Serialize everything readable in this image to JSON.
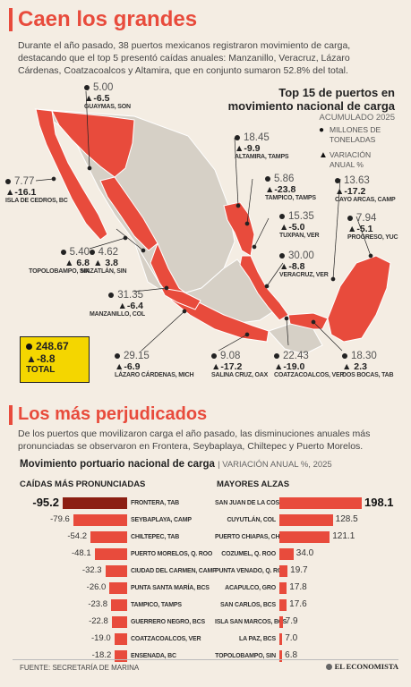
{
  "header": {
    "title": "Caen los grandes"
  },
  "intro": "Durante el año pasado, 38 puertos mexicanos registraron movimiento de carga, destacando que el top 5 presentó caídas anuales: Manzanillo, Veracruz, Lázaro Cárdenas, Coatzacoalcos y Altamira, que en conjunto sumaron 52.8% del total.",
  "map": {
    "title_line1": "Top 15 de puertos en",
    "title_line2": "movimiento nacional de carga",
    "subtitle": "ACUMULADO 2025",
    "legend_millions": "MILLONES DE TONELADAS",
    "legend_change": "VARIACIÓN ANUAL %",
    "legend_dot": "●",
    "legend_tri": "▲",
    "colors": {
      "highlight": "#e84b3c",
      "land": "#d6d0c6",
      "border": "#ffffff"
    }
  },
  "ports": [
    {
      "value": "5.00",
      "change": "▲-6.5",
      "name": "GUAYMAS, SON"
    },
    {
      "value": "7.77",
      "change": "▲-16.1",
      "name": "ISLA DE CEDROS, BC"
    },
    {
      "value": "5.40",
      "change": "▲ 6.8",
      "name": "TOPOLOBAMPO, SIN"
    },
    {
      "value": "4.62",
      "change": "▲ 3.8",
      "name": "MAZATLÁN, SIN"
    },
    {
      "value": "31.35",
      "change": "▲-6.4",
      "name": "MANZANILLO, COL"
    },
    {
      "value": "29.15",
      "change": "▲-6.9",
      "name": "LÁZARO CÁRDENAS, MICH"
    },
    {
      "value": "9.08",
      "change": "▲-17.2",
      "name": "SALINA CRUZ, OAX"
    },
    {
      "value": "22.43",
      "change": "▲-19.0",
      "name": "COATZACOALCOS, VER"
    },
    {
      "value": "18.30",
      "change": "▲ 2.3",
      "name": "DOS BOCAS, TAB"
    },
    {
      "value": "18.45",
      "change": "▲-9.9",
      "name": "ALTAMIRA, TAMPS"
    },
    {
      "value": "5.86",
      "change": "▲-23.8",
      "name": "TAMPICO, TAMPS"
    },
    {
      "value": "15.35",
      "change": "▲-5.0",
      "name": "TUXPAN, VER"
    },
    {
      "value": "30.00",
      "change": "▲-8.8",
      "name": "VERACRUZ, VER"
    },
    {
      "value": "13.63",
      "change": "▲-17.2",
      "name": "CAYO ARCAS, CAMP"
    },
    {
      "value": "7.94",
      "change": "▲-5.1",
      "name": "PROGRESO, YUC"
    }
  ],
  "total": {
    "value": "248.67",
    "change": "▲-8.8",
    "label": "TOTAL"
  },
  "section2": {
    "title": "Los más perjudicados",
    "intro": "De los puertos que movilizaron carga el año pasado, las disminuciones anuales más pronunciadas se observaron en Frontera, Seybaplaya, Chiltepec y Puerto Morelos.",
    "chart_title": "Movimiento portuario nacional de carga",
    "chart_subtitle": "| VARIACIÓN ANUAL %, 2025"
  },
  "chart_data": [
    {
      "type": "bar",
      "title": "CAÍDAS MÁS PRONUNCIADAS",
      "categories": [
        "FRONTERA, TAB",
        "SEYBAPLAYA, CAMP",
        "CHILTEPEC, TAB",
        "PUERTO MORELOS, Q. ROO",
        "CIUDAD DEL CARMEN, CAMP",
        "PUNTA SANTA MARÍA, BCS",
        "TAMPICO, TAMPS",
        "GUERRERO NEGRO, BCS",
        "COATZACOALCOS, VER",
        "ENSENADA, BC"
      ],
      "values": [
        -95.2,
        -79.6,
        -54.2,
        -48.1,
        -32.3,
        -26.0,
        -23.8,
        -22.8,
        -19.0,
        -18.2
      ],
      "labels": [
        "-95.2",
        "-79.6",
        "-54.2",
        "-48.1",
        "-32.3",
        "-26.0",
        "-23.8",
        "-22.8",
        "-19.0",
        "-18.2"
      ]
    },
    {
      "type": "bar",
      "title": "MAYORES ALZAS",
      "categories": [
        "SAN JUAN DE LA COSTA, BCS",
        "CUYUTLÁN, COL",
        "PUERTO CHIAPAS, CHIS",
        "COZUMEL, Q. ROO",
        "PUNTA VENADO, Q. ROO",
        "ACAPULCO, GRO",
        "SAN CARLOS, BCS",
        "ISLA SAN MARCOS, BCS",
        "LA PAZ, BCS",
        "TOPOLOBAMPO, SIN"
      ],
      "values": [
        198.1,
        128.5,
        121.1,
        34.0,
        19.7,
        17.8,
        17.6,
        7.9,
        7.0,
        6.8
      ],
      "labels": [
        "198.1",
        "128.5",
        "121.1",
        "34.0",
        "19.7",
        "17.8",
        "17.6",
        "7.9",
        "7.0",
        "6.8"
      ]
    }
  ],
  "footer": {
    "source": "FUENTE: SECRETARÍA DE MARINA",
    "brand": "EL ECONOMISTA"
  }
}
